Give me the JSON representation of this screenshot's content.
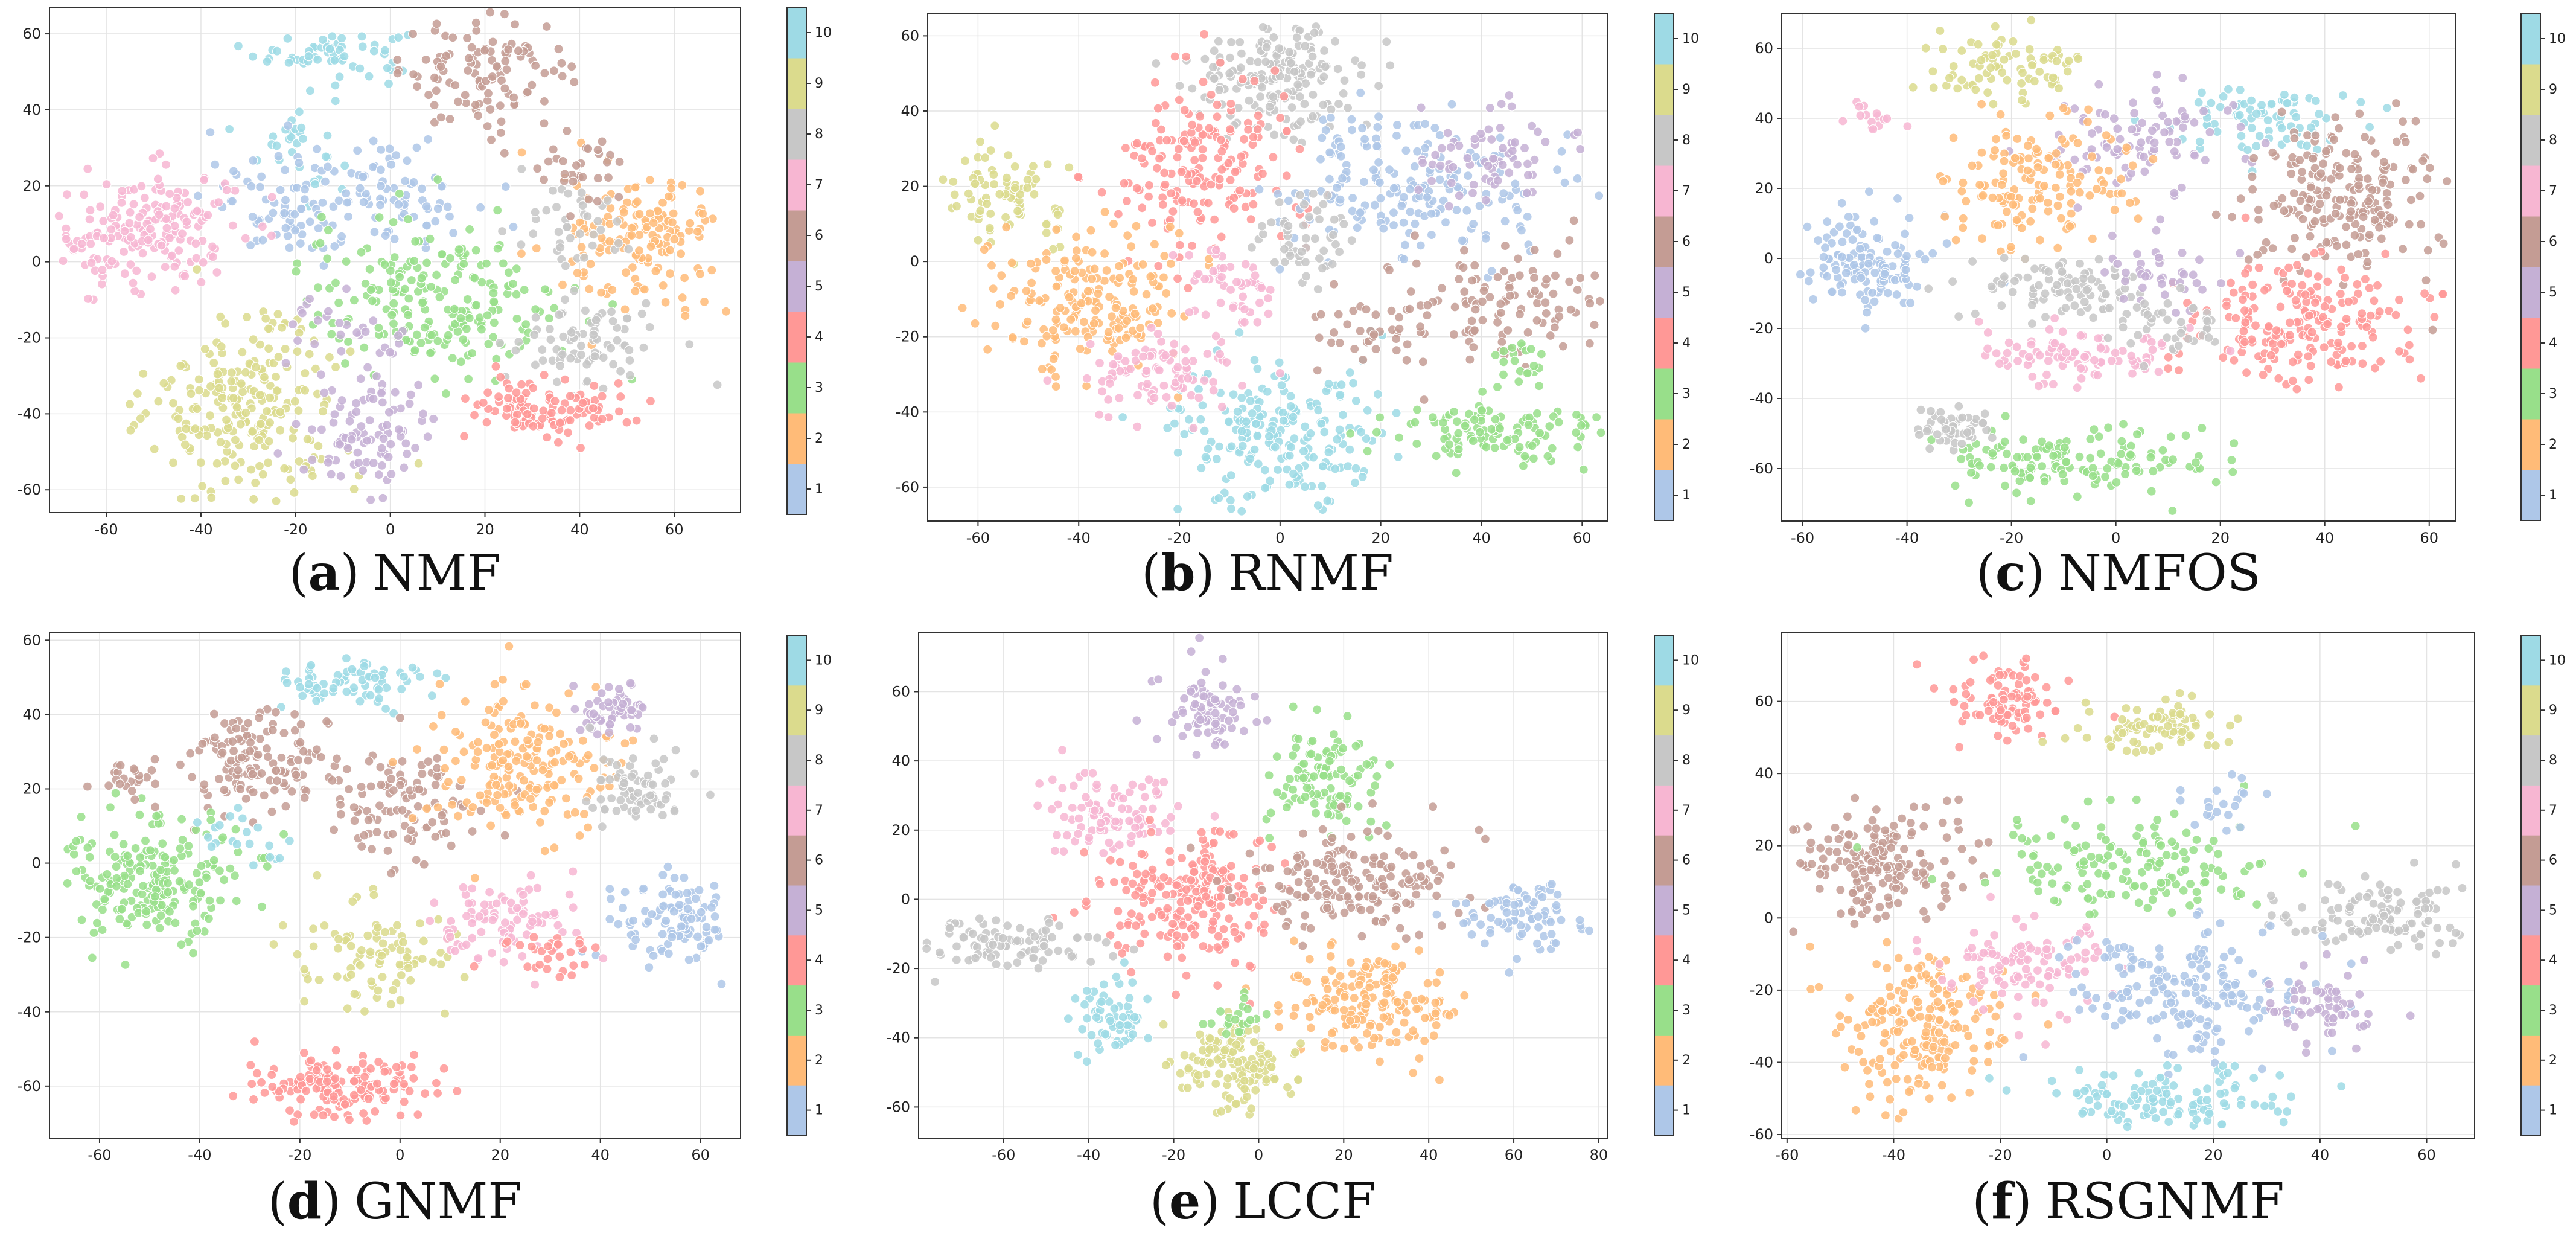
{
  "figure": {
    "palette": [
      "#aec7e8",
      "#ffbb78",
      "#98df8a",
      "#ff9896",
      "#c5b0d5",
      "#c49c94",
      "#f7b6d2",
      "#c7c7c7",
      "#dbdb8d",
      "#9edae5"
    ],
    "colorbar_ticks": [
      "1",
      "2",
      "3",
      "4",
      "5",
      "6",
      "7",
      "8",
      "9",
      "10"
    ]
  },
  "chart_data": [
    {
      "type": "scatter",
      "panel_letter": "a",
      "title": "NMF",
      "caption_open": "(",
      "caption_close": ")",
      "xlim": [
        -72,
        74
      ],
      "ylim": [
        -66,
        67
      ],
      "xticks": [
        -60,
        -40,
        -20,
        0,
        20,
        40,
        60
      ],
      "yticks": [
        -60,
        -40,
        -20,
        0,
        20,
        40,
        60
      ],
      "clusters": [
        {
          "label": 10,
          "cx": -12,
          "cy": 55,
          "sx": 8,
          "sy": 3,
          "n": 60
        },
        {
          "label": 10,
          "cx": -20,
          "cy": 32,
          "sx": 4,
          "sy": 8,
          "n": 30
        },
        {
          "label": 6,
          "cx": 20,
          "cy": 50,
          "sx": 9,
          "sy": 7,
          "n": 110
        },
        {
          "label": 1,
          "cx": -15,
          "cy": 15,
          "sx": 12,
          "sy": 7,
          "n": 110
        },
        {
          "label": 1,
          "cx": 5,
          "cy": 20,
          "sx": 7,
          "sy": 6,
          "n": 40
        },
        {
          "label": 7,
          "cx": -52,
          "cy": 8,
          "sx": 10,
          "sy": 8,
          "n": 190
        },
        {
          "label": 3,
          "cx": 10,
          "cy": -10,
          "sx": 14,
          "sy": 10,
          "n": 210
        },
        {
          "label": 2,
          "cx": 53,
          "cy": 5,
          "sx": 8,
          "sy": 9,
          "n": 150
        },
        {
          "label": 8,
          "cx": 42,
          "cy": -22,
          "sx": 8,
          "sy": 6,
          "n": 80
        },
        {
          "label": 8,
          "cx": 38,
          "cy": 10,
          "sx": 6,
          "sy": 6,
          "n": 40
        },
        {
          "label": 4,
          "cx": 33,
          "cy": -38,
          "sx": 9,
          "sy": 4,
          "n": 110
        },
        {
          "label": 9,
          "cx": -30,
          "cy": -38,
          "sx": 10,
          "sy": 11,
          "n": 230
        },
        {
          "label": 5,
          "cx": -5,
          "cy": -45,
          "sx": 7,
          "sy": 7,
          "n": 90
        },
        {
          "label": 6,
          "cx": 40,
          "cy": 25,
          "sx": 5,
          "sy": 4,
          "n": 30
        },
        {
          "label": 5,
          "cx": -10,
          "cy": -20,
          "sx": 8,
          "sy": 6,
          "n": 30
        }
      ]
    },
    {
      "type": "scatter",
      "panel_letter": "b",
      "title": "RNMF",
      "caption_open": "(",
      "caption_close": ")",
      "xlim": [
        -70,
        65
      ],
      "ylim": [
        -69,
        66
      ],
      "xticks": [
        -60,
        -40,
        -20,
        0,
        20,
        40,
        60
      ],
      "yticks": [
        -60,
        -40,
        -20,
        0,
        20,
        40,
        60
      ],
      "clusters": [
        {
          "label": 9,
          "cx": -55,
          "cy": 18,
          "sx": 6,
          "sy": 7,
          "n": 80
        },
        {
          "label": 8,
          "cx": 0,
          "cy": 50,
          "sx": 8,
          "sy": 8,
          "n": 180
        },
        {
          "label": 4,
          "cx": -15,
          "cy": 25,
          "sx": 9,
          "sy": 12,
          "n": 180
        },
        {
          "label": 2,
          "cx": -38,
          "cy": -10,
          "sx": 10,
          "sy": 9,
          "n": 190
        },
        {
          "label": 10,
          "cx": -2,
          "cy": -45,
          "sx": 10,
          "sy": 10,
          "n": 210
        },
        {
          "label": 3,
          "cx": 42,
          "cy": -45,
          "sx": 11,
          "sy": 4,
          "n": 110
        },
        {
          "label": 1,
          "cx": 25,
          "cy": 20,
          "sx": 14,
          "sy": 10,
          "n": 200
        },
        {
          "label": 5,
          "cx": 42,
          "cy": 28,
          "sx": 7,
          "sy": 6,
          "n": 70
        },
        {
          "label": 6,
          "cx": 45,
          "cy": -12,
          "sx": 10,
          "sy": 8,
          "n": 110
        },
        {
          "label": 6,
          "cx": 18,
          "cy": -18,
          "sx": 6,
          "sy": 5,
          "n": 40
        },
        {
          "label": 7,
          "cx": -25,
          "cy": -30,
          "sx": 8,
          "sy": 5,
          "n": 90
        },
        {
          "label": 7,
          "cx": -10,
          "cy": -5,
          "sx": 5,
          "sy": 6,
          "n": 50
        },
        {
          "label": 8,
          "cx": 5,
          "cy": 5,
          "sx": 6,
          "sy": 6,
          "n": 50
        },
        {
          "label": 3,
          "cx": 48,
          "cy": -28,
          "sx": 3,
          "sy": 3,
          "n": 20
        }
      ]
    },
    {
      "type": "scatter",
      "panel_letter": "c",
      "title": "NMFOS",
      "caption_open": "(",
      "caption_close": ")",
      "xlim": [
        -64,
        65
      ],
      "ylim": [
        -75,
        70
      ],
      "xticks": [
        -60,
        -40,
        -20,
        0,
        20,
        40,
        60
      ],
      "yticks": [
        -60,
        -40,
        -20,
        0,
        20,
        40,
        60
      ],
      "clusters": [
        {
          "label": 1,
          "cx": -48,
          "cy": -2,
          "sx": 6,
          "sy": 8,
          "n": 130
        },
        {
          "label": 9,
          "cx": -22,
          "cy": 55,
          "sx": 8,
          "sy": 5,
          "n": 80
        },
        {
          "label": 10,
          "cx": 28,
          "cy": 40,
          "sx": 8,
          "sy": 5,
          "n": 80
        },
        {
          "label": 5,
          "cx": 5,
          "cy": 35,
          "sx": 9,
          "sy": 6,
          "n": 90
        },
        {
          "label": 6,
          "cx": 45,
          "cy": 18,
          "sx": 9,
          "sy": 11,
          "n": 210
        },
        {
          "label": 2,
          "cx": -15,
          "cy": 20,
          "sx": 9,
          "sy": 9,
          "n": 150
        },
        {
          "label": 4,
          "cx": 35,
          "cy": -18,
          "sx": 12,
          "sy": 9,
          "n": 200
        },
        {
          "label": 8,
          "cx": -12,
          "cy": -8,
          "sx": 9,
          "sy": 5,
          "n": 90
        },
        {
          "label": 7,
          "cx": -10,
          "cy": -28,
          "sx": 10,
          "sy": 4,
          "n": 90
        },
        {
          "label": 3,
          "cx": -10,
          "cy": -58,
          "sx": 12,
          "sy": 5,
          "n": 140
        },
        {
          "label": 8,
          "cx": -32,
          "cy": -48,
          "sx": 5,
          "sy": 3,
          "n": 50
        },
        {
          "label": 5,
          "cx": 10,
          "cy": -5,
          "sx": 6,
          "sy": 6,
          "n": 40
        },
        {
          "label": 7,
          "cx": -45,
          "cy": 40,
          "sx": 3,
          "sy": 3,
          "n": 15
        },
        {
          "label": 8,
          "cx": 10,
          "cy": -20,
          "sx": 6,
          "sy": 5,
          "n": 40
        }
      ]
    },
    {
      "type": "scatter",
      "panel_letter": "d",
      "title": "GNMF",
      "caption_open": "(",
      "caption_close": ")",
      "xlim": [
        -70,
        68
      ],
      "ylim": [
        -74,
        62
      ],
      "xticks": [
        -60,
        -40,
        -20,
        0,
        20,
        40,
        60
      ],
      "yticks": [
        -60,
        -40,
        -20,
        0,
        20,
        40,
        60
      ],
      "clusters": [
        {
          "label": 10,
          "cx": -10,
          "cy": 48,
          "sx": 8,
          "sy": 3,
          "n": 70
        },
        {
          "label": 6,
          "cx": -30,
          "cy": 28,
          "sx": 8,
          "sy": 7,
          "n": 130
        },
        {
          "label": 6,
          "cx": 0,
          "cy": 15,
          "sx": 8,
          "sy": 8,
          "n": 100
        },
        {
          "label": 2,
          "cx": 25,
          "cy": 25,
          "sx": 9,
          "sy": 10,
          "n": 190
        },
        {
          "label": 5,
          "cx": 42,
          "cy": 42,
          "sx": 4,
          "sy": 4,
          "n": 50
        },
        {
          "label": 8,
          "cx": 48,
          "cy": 20,
          "sx": 6,
          "sy": 6,
          "n": 70
        },
        {
          "label": 1,
          "cx": 55,
          "cy": -15,
          "sx": 6,
          "sy": 6,
          "n": 100
        },
        {
          "label": 3,
          "cx": -50,
          "cy": -5,
          "sx": 9,
          "sy": 9,
          "n": 210
        },
        {
          "label": 9,
          "cx": -5,
          "cy": -25,
          "sx": 8,
          "sy": 7,
          "n": 90
        },
        {
          "label": 4,
          "cx": -12,
          "cy": -60,
          "sx": 9,
          "sy": 4,
          "n": 160
        },
        {
          "label": 7,
          "cx": 20,
          "cy": -15,
          "sx": 8,
          "sy": 5,
          "n": 90
        },
        {
          "label": 4,
          "cx": 30,
          "cy": -25,
          "sx": 5,
          "sy": 3,
          "n": 30
        },
        {
          "label": 10,
          "cx": -30,
          "cy": 5,
          "sx": 5,
          "sy": 4,
          "n": 20
        },
        {
          "label": 6,
          "cx": -55,
          "cy": 22,
          "sx": 3,
          "sy": 2,
          "n": 20
        }
      ]
    },
    {
      "type": "scatter",
      "panel_letter": "e",
      "title": "LCCF",
      "caption_open": "(",
      "caption_close": ")",
      "xlim": [
        -80,
        82
      ],
      "ylim": [
        -69,
        77
      ],
      "xticks": [
        -60,
        -40,
        -20,
        0,
        20,
        40,
        60,
        80
      ],
      "yticks": [
        -60,
        -40,
        -20,
        0,
        20,
        40,
        60
      ],
      "clusters": [
        {
          "label": 5,
          "cx": -12,
          "cy": 55,
          "sx": 6,
          "sy": 6,
          "n": 80
        },
        {
          "label": 3,
          "cx": 15,
          "cy": 35,
          "sx": 6,
          "sy": 8,
          "n": 110
        },
        {
          "label": 7,
          "cx": -35,
          "cy": 25,
          "sx": 8,
          "sy": 6,
          "n": 100
        },
        {
          "label": 4,
          "cx": -15,
          "cy": 0,
          "sx": 10,
          "sy": 10,
          "n": 220
        },
        {
          "label": 6,
          "cx": 22,
          "cy": 5,
          "sx": 12,
          "sy": 7,
          "n": 180
        },
        {
          "label": 1,
          "cx": 62,
          "cy": -5,
          "sx": 7,
          "sy": 5,
          "n": 80
        },
        {
          "label": 8,
          "cx": -60,
          "cy": -12,
          "sx": 10,
          "sy": 4,
          "n": 90
        },
        {
          "label": 10,
          "cx": -35,
          "cy": -35,
          "sx": 5,
          "sy": 6,
          "n": 60
        },
        {
          "label": 2,
          "cx": 25,
          "cy": -30,
          "sx": 10,
          "sy": 8,
          "n": 170
        },
        {
          "label": 9,
          "cx": -5,
          "cy": -48,
          "sx": 7,
          "sy": 6,
          "n": 130
        },
        {
          "label": 3,
          "cx": -5,
          "cy": -35,
          "sx": 4,
          "sy": 3,
          "n": 20
        }
      ]
    },
    {
      "type": "scatter",
      "panel_letter": "f",
      "title": "RSGNMF",
      "caption_open": "(",
      "caption_close": ")",
      "xlim": [
        -61,
        69
      ],
      "ylim": [
        -61,
        79
      ],
      "xticks": [
        -60,
        -40,
        -20,
        0,
        20,
        40,
        60
      ],
      "yticks": [
        -60,
        -40,
        -20,
        0,
        20,
        40,
        60
      ],
      "clusters": [
        {
          "label": 4,
          "cx": -18,
          "cy": 60,
          "sx": 5,
          "sy": 6,
          "n": 90
        },
        {
          "label": 9,
          "cx": 10,
          "cy": 52,
          "sx": 7,
          "sy": 4,
          "n": 80
        },
        {
          "label": 6,
          "cx": -42,
          "cy": 15,
          "sx": 8,
          "sy": 8,
          "n": 170
        },
        {
          "label": 3,
          "cx": 5,
          "cy": 15,
          "sx": 14,
          "sy": 7,
          "n": 150
        },
        {
          "label": 8,
          "cx": 50,
          "cy": 0,
          "sx": 9,
          "sy": 5,
          "n": 110
        },
        {
          "label": 2,
          "cx": -35,
          "cy": -30,
          "sx": 8,
          "sy": 10,
          "n": 200
        },
        {
          "label": 7,
          "cx": -15,
          "cy": -12,
          "sx": 8,
          "sy": 6,
          "n": 110
        },
        {
          "label": 1,
          "cx": 15,
          "cy": -20,
          "sx": 12,
          "sy": 8,
          "n": 180
        },
        {
          "label": 10,
          "cx": 10,
          "cy": -50,
          "sx": 12,
          "sy": 4,
          "n": 120
        },
        {
          "label": 5,
          "cx": 40,
          "cy": -25,
          "sx": 6,
          "sy": 5,
          "n": 60
        },
        {
          "label": 1,
          "cx": 22,
          "cy": 32,
          "sx": 4,
          "sy": 3,
          "n": 20
        }
      ]
    }
  ]
}
